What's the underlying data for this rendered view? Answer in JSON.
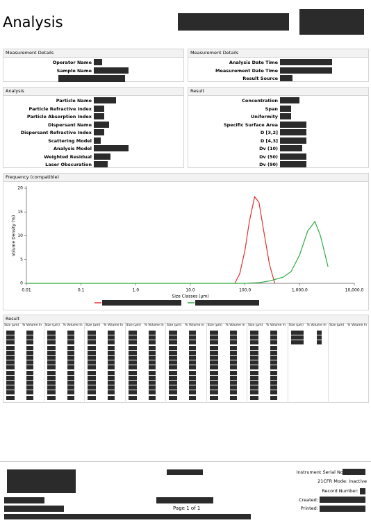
{
  "header": {
    "title": "Analysis"
  },
  "panels": [
    {
      "title": "Measurement Details",
      "labels": [
        "Operator Name",
        "Sample Name"
      ]
    },
    {
      "title": "Measurement Details",
      "labels": [
        "Analysis Date Time",
        "Measurement Date Time",
        "Result Source"
      ]
    },
    {
      "title": "Analysis",
      "labels": [
        "Particle Name",
        "Particle Refractive Index",
        "Particle Absorption Index",
        "Dispersant Name",
        "Dispersant Refractive Index",
        "Scattering Model",
        "Analysis Model",
        "Weighted Residual",
        "Laser Obscuration"
      ]
    },
    {
      "title": "Result",
      "labels": [
        "Concentration",
        "Span",
        "Uniformity",
        "Specific Surface Area",
        "D [3,2]",
        "D [4,3]",
        "Dv (10)",
        "Dv (50)",
        "Dv (90)"
      ]
    }
  ],
  "chart_data": {
    "type": "line",
    "title": "Frequency (compatible)",
    "x_label": "Size Classes (µm)",
    "y_label": "Volume Density (%)",
    "log_x": true,
    "x": [
      0.01,
      0.1,
      1,
      10,
      50,
      65,
      80,
      100,
      120,
      150,
      180,
      220,
      280,
      350,
      500,
      700,
      1000,
      1400,
      1900,
      2400,
      3300
    ],
    "series": [
      {
        "color": "#e03030",
        "values": [
          null,
          null,
          null,
          null,
          null,
          0,
          2,
          7,
          13,
          18.2,
          17,
          11,
          4,
          0,
          null,
          null,
          null,
          null,
          null,
          null,
          null
        ]
      },
      {
        "color": "#2daa45",
        "values": [
          0,
          0,
          0,
          0,
          0,
          0,
          0,
          0,
          0.05,
          0.1,
          0.15,
          0.3,
          0.5,
          0.8,
          1.3,
          2.5,
          6,
          11,
          13,
          10,
          3.5
        ]
      }
    ],
    "xlim": [
      0.01,
      10000
    ],
    "ylim": [
      0,
      20
    ],
    "xticks": [
      0.01,
      0.1,
      {
        "value": 1,
        "label": "1.0"
      },
      {
        "value": 10,
        "label": "10.0"
      },
      {
        "value": 100,
        "label": "100.0"
      },
      {
        "value": 1000,
        "label": "1,000.0"
      },
      {
        "value": 10000,
        "label": "10,000.0"
      }
    ],
    "yticks": [
      0,
      5,
      10,
      15,
      20
    ]
  },
  "result_table": {
    "title": "Result",
    "column_groups": [
      [
        "Size (µm)",
        "% Volume In"
      ],
      [
        "Size (µm)",
        "% Volume In"
      ],
      [
        "Size (µm)",
        "% Volume In"
      ],
      [
        "Size (µm)",
        "% Volume In"
      ],
      [
        "Size (µm)",
        "% Volume In"
      ],
      [
        "Size (µm)",
        "% Volume In"
      ],
      [
        "Size (µm)",
        "% Volume In"
      ],
      [
        "Size (µm)",
        "% Volume In"
      ],
      [
        "Size (µm)",
        "% Volume In"
      ]
    ]
  },
  "footer": {
    "serial": "Instrument Serial No:",
    "mode": "21CFR Mode: Inactive",
    "record": "Record Number:",
    "created": "Created:",
    "printed": "Printed:",
    "page": "Page 1 of 1"
  }
}
